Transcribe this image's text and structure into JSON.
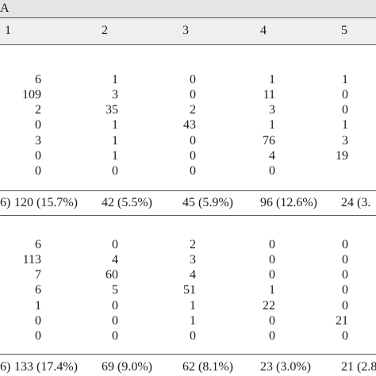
{
  "group_label": "A",
  "columns": [
    "1",
    "2",
    "3",
    "4",
    "5"
  ],
  "section1": {
    "rows": [
      [
        "6",
        "1",
        "0",
        "1",
        "1"
      ],
      [
        "109",
        "3",
        "0",
        "11",
        "0"
      ],
      [
        "2",
        "35",
        "2",
        "3",
        "0"
      ],
      [
        "0",
        "1",
        "43",
        "1",
        "1"
      ],
      [
        "3",
        "1",
        "0",
        "76",
        "3"
      ],
      [
        "0",
        "1",
        "0",
        "4",
        "19"
      ],
      [
        "0",
        "0",
        "0",
        "0",
        ""
      ]
    ],
    "total_label_fragment": "6)",
    "totals": [
      "120 (15.7%)",
      "42 (5.5%)",
      "45 (5.9%)",
      "96 (12.6%)",
      "24 (3."
    ]
  },
  "section2": {
    "rows": [
      [
        "6",
        "0",
        "2",
        "0",
        "0"
      ],
      [
        "113",
        "4",
        "3",
        "0",
        "0"
      ],
      [
        "7",
        "60",
        "4",
        "0",
        "0"
      ],
      [
        "6",
        "5",
        "51",
        "1",
        "0"
      ],
      [
        "1",
        "0",
        "1",
        "22",
        "0"
      ],
      [
        "0",
        "0",
        "1",
        "0",
        "21"
      ],
      [
        "0",
        "0",
        "0",
        "0",
        "0"
      ]
    ],
    "total_label_fragment": "6)",
    "totals": [
      "133 (17.4%)",
      "69 (9.0%)",
      "62 (8.1%)",
      "23 (3.0%)",
      "21 (2.8"
    ]
  }
}
